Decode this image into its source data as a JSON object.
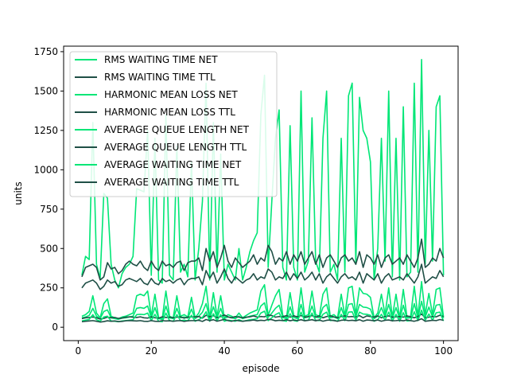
{
  "chart_data": {
    "type": "line",
    "xlabel": "episode",
    "ylabel": "units",
    "xlim": [
      -4,
      104
    ],
    "ylim": [
      -85,
      1785
    ],
    "xticks": [
      0,
      20,
      40,
      60,
      80,
      100
    ],
    "yticks": [
      0,
      250,
      500,
      750,
      1000,
      1250,
      1500,
      1750
    ],
    "legend_location": "upper-left",
    "x": [
      1,
      2,
      3,
      4,
      5,
      6,
      7,
      8,
      9,
      10,
      11,
      12,
      13,
      14,
      15,
      16,
      17,
      18,
      19,
      20,
      21,
      22,
      23,
      24,
      25,
      26,
      27,
      28,
      29,
      30,
      31,
      32,
      33,
      34,
      35,
      36,
      37,
      38,
      39,
      40,
      41,
      42,
      43,
      44,
      45,
      46,
      47,
      48,
      49,
      50,
      51,
      52,
      53,
      54,
      55,
      56,
      57,
      58,
      59,
      60,
      61,
      62,
      63,
      64,
      65,
      66,
      67,
      68,
      69,
      70,
      71,
      72,
      73,
      74,
      75,
      76,
      77,
      78,
      79,
      80,
      81,
      82,
      83,
      84,
      85,
      86,
      87,
      88,
      89,
      90,
      91,
      92,
      93,
      94,
      95,
      96,
      97,
      98,
      99,
      100
    ],
    "series": [
      {
        "name": "RMS WAITING TIME NET",
        "color": "#00e676",
        "values": [
          330,
          450,
          430,
          1300,
          400,
          310,
          850,
          820,
          400,
          300,
          250,
          340,
          380,
          400,
          450,
          880,
          870,
          860,
          1250,
          330,
          1200,
          300,
          280,
          1350,
          330,
          300,
          1150,
          350,
          400,
          320,
          1050,
          300,
          500,
          800,
          1550,
          300,
          1300,
          350,
          1100,
          300,
          400,
          350,
          300,
          500,
          300,
          380,
          480,
          550,
          600,
          1350,
          1600,
          380,
          800,
          1200,
          1380,
          380,
          300,
          1280,
          380,
          300,
          1500,
          350,
          420,
          1330,
          420,
          350,
          1200,
          1500,
          350,
          400,
          300,
          1200,
          350,
          1470,
          1550,
          400,
          1460,
          1250,
          1200,
          1050,
          300,
          500,
          1200,
          420,
          1500,
          320,
          1200,
          300,
          1400,
          320,
          350,
          1550,
          350,
          1700,
          400,
          1250,
          420,
          1400,
          1470,
          330
        ],
        "seed": 3
      },
      {
        "name": "RMS WAITING TIME TTL",
        "color": "#1f4f46",
        "values": [
          320,
          380,
          390,
          400,
          380,
          300,
          320,
          410,
          370,
          380,
          340,
          360,
          400,
          420,
          400,
          390,
          420,
          380,
          360,
          420,
          380,
          360,
          420,
          390,
          400,
          380,
          410,
          420,
          360,
          410,
          420,
          420,
          440,
          360,
          500,
          420,
          480,
          380,
          440,
          520,
          420,
          380,
          440,
          410,
          380,
          400,
          420,
          460,
          400,
          440,
          420,
          520,
          480,
          400,
          440,
          420,
          480,
          400,
          460,
          420,
          480,
          400,
          440,
          480,
          400,
          460,
          380,
          440,
          460,
          420,
          380,
          440,
          460,
          420,
          440,
          400,
          480,
          380,
          460,
          440,
          400,
          460,
          380,
          440,
          460,
          400,
          420,
          440,
          400,
          460,
          420,
          380,
          440,
          560,
          380,
          400,
          440,
          420,
          500,
          440
        ],
        "seed": 5
      },
      {
        "name": "HARMONIC MEAN LOSS NET",
        "color": "#00e676",
        "values": [
          70,
          80,
          100,
          200,
          90,
          60,
          150,
          180,
          70,
          60,
          55,
          65,
          70,
          80,
          90,
          200,
          210,
          200,
          230,
          70,
          210,
          60,
          55,
          230,
          70,
          60,
          200,
          70,
          80,
          65,
          190,
          60,
          90,
          150,
          260,
          60,
          220,
          70,
          200,
          60,
          80,
          70,
          60,
          90,
          60,
          75,
          90,
          100,
          110,
          230,
          270,
          75,
          140,
          200,
          240,
          75,
          60,
          220,
          75,
          60,
          250,
          70,
          80,
          230,
          80,
          70,
          210,
          250,
          70,
          80,
          60,
          210,
          70,
          250,
          260,
          80,
          250,
          215,
          210,
          190,
          60,
          90,
          210,
          80,
          250,
          65,
          210,
          60,
          240,
          65,
          70,
          260,
          70,
          290,
          80,
          215,
          80,
          240,
          250,
          65
        ],
        "seed": 7
      },
      {
        "name": "HARMONIC MEAN LOSS TTL",
        "color": "#1f4f46",
        "values": [
          250,
          280,
          290,
          300,
          280,
          240,
          260,
          300,
          280,
          290,
          260,
          270,
          300,
          310,
          300,
          290,
          310,
          280,
          270,
          310,
          280,
          270,
          310,
          290,
          300,
          280,
          300,
          310,
          270,
          300,
          310,
          310,
          320,
          270,
          360,
          310,
          350,
          280,
          320,
          370,
          310,
          280,
          320,
          300,
          280,
          300,
          310,
          340,
          300,
          320,
          310,
          370,
          350,
          300,
          320,
          310,
          350,
          300,
          340,
          310,
          350,
          300,
          320,
          350,
          300,
          340,
          280,
          320,
          340,
          310,
          280,
          320,
          340,
          310,
          320,
          300,
          350,
          280,
          340,
          320,
          300,
          340,
          280,
          320,
          340,
          300,
          310,
          320,
          300,
          340,
          310,
          280,
          320,
          400,
          280,
          300,
          320,
          310,
          360,
          320
        ],
        "seed": 11
      },
      {
        "name": "AVERAGE QUEUE LENGTH NET",
        "color": "#00e676",
        "values": [
          60,
          65,
          75,
          120,
          70,
          55,
          100,
          110,
          60,
          55,
          50,
          58,
          60,
          65,
          70,
          120,
          125,
          120,
          135,
          60,
          125,
          55,
          50,
          135,
          60,
          55,
          120,
          60,
          65,
          58,
          115,
          55,
          70,
          95,
          150,
          55,
          130,
          60,
          120,
          55,
          65,
          60,
          55,
          70,
          55,
          62,
          70,
          75,
          80,
          135,
          155,
          62,
          90,
          120,
          140,
          62,
          55,
          130,
          62,
          55,
          145,
          60,
          65,
          135,
          65,
          60,
          125,
          145,
          60,
          65,
          55,
          125,
          60,
          145,
          150,
          65,
          145,
          128,
          125,
          115,
          55,
          70,
          125,
          65,
          145,
          58,
          125,
          55,
          140,
          58,
          60,
          150,
          60,
          165,
          65,
          128,
          65,
          140,
          145,
          58
        ],
        "seed": 13
      },
      {
        "name": "AVERAGE QUEUE LENGTH TTL",
        "color": "#1f4f46",
        "values": [
          55,
          60,
          62,
          65,
          60,
          52,
          56,
          64,
          60,
          62,
          56,
          58,
          64,
          66,
          64,
          62,
          66,
          60,
          58,
          66,
          60,
          58,
          66,
          62,
          64,
          60,
          64,
          66,
          58,
          64,
          66,
          66,
          68,
          58,
          76,
          66,
          74,
          60,
          68,
          78,
          66,
          60,
          68,
          64,
          60,
          64,
          66,
          72,
          64,
          68,
          66,
          78,
          74,
          64,
          68,
          66,
          74,
          64,
          72,
          66,
          74,
          64,
          68,
          74,
          64,
          72,
          60,
          68,
          72,
          66,
          60,
          68,
          72,
          66,
          68,
          64,
          74,
          60,
          72,
          68,
          64,
          72,
          60,
          68,
          72,
          64,
          66,
          68,
          64,
          72,
          66,
          60,
          68,
          84,
          60,
          64,
          68,
          66,
          76,
          68
        ],
        "seed": 17
      },
      {
        "name": "AVERAGE WAITING TIME NET",
        "color": "#00e676",
        "values": [
          40,
          45,
          50,
          80,
          48,
          38,
          65,
          70,
          40,
          38,
          35,
          40,
          42,
          45,
          48,
          80,
          82,
          80,
          90,
          42,
          82,
          38,
          35,
          90,
          42,
          38,
          80,
          42,
          45,
          40,
          76,
          38,
          48,
          62,
          98,
          38,
          86,
          42,
          80,
          38,
          45,
          42,
          38,
          48,
          38,
          42,
          48,
          50,
          54,
          90,
          102,
          42,
          60,
          80,
          92,
          42,
          38,
          86,
          42,
          38,
          96,
          42,
          45,
          90,
          45,
          42,
          82,
          96,
          42,
          45,
          38,
          82,
          42,
          96,
          98,
          45,
          96,
          84,
          82,
          76,
          38,
          48,
          82,
          45,
          96,
          40,
          82,
          38,
          92,
          40,
          42,
          98,
          42,
          108,
          45,
          84,
          45,
          92,
          96,
          40
        ],
        "seed": 19
      },
      {
        "name": "AVERAGE WAITING TIME TTL",
        "color": "#1f4f46",
        "values": [
          35,
          38,
          40,
          42,
          38,
          33,
          36,
          41,
          38,
          40,
          36,
          37,
          41,
          42,
          41,
          40,
          42,
          38,
          37,
          42,
          38,
          37,
          42,
          40,
          41,
          38,
          41,
          42,
          37,
          41,
          42,
          42,
          44,
          37,
          49,
          42,
          48,
          38,
          44,
          50,
          42,
          38,
          44,
          41,
          38,
          41,
          42,
          46,
          41,
          44,
          42,
          50,
          48,
          41,
          44,
          42,
          48,
          41,
          46,
          42,
          48,
          41,
          44,
          48,
          41,
          46,
          38,
          44,
          46,
          42,
          38,
          44,
          46,
          42,
          44,
          41,
          48,
          38,
          46,
          44,
          41,
          46,
          38,
          44,
          46,
          41,
          42,
          44,
          41,
          46,
          42,
          38,
          44,
          54,
          38,
          41,
          44,
          42,
          49,
          44
        ],
        "seed": 23
      }
    ]
  }
}
